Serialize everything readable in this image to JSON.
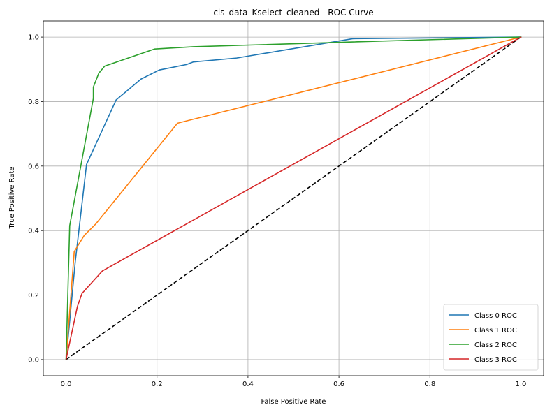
{
  "chart_data": {
    "type": "line",
    "title": "cls_data_Kselect_cleaned - ROC Curve",
    "xlabel": "False Positive Rate",
    "ylabel": "True Positive Rate",
    "xlim": [
      -0.05,
      1.05
    ],
    "ylim": [
      -0.05,
      1.05
    ],
    "x_ticks": [
      0.0,
      0.2,
      0.4,
      0.6,
      0.8,
      1.0
    ],
    "y_ticks": [
      0.0,
      0.2,
      0.4,
      0.6,
      0.8,
      1.0
    ],
    "x_tick_labels": [
      "0.0",
      "0.2",
      "0.4",
      "0.6",
      "0.8",
      "1.0"
    ],
    "y_tick_labels": [
      "0.0",
      "0.2",
      "0.4",
      "0.6",
      "0.8",
      "1.0"
    ],
    "grid": true,
    "legend_position": "lower-right",
    "series": [
      {
        "name": "Class 0 ROC",
        "color": "#1f77b4",
        "x": [
          0.0,
          0.02,
          0.045,
          0.11,
          0.165,
          0.205,
          0.265,
          0.28,
          0.375,
          0.63,
          1.0
        ],
        "y": [
          0.0,
          0.3,
          0.605,
          0.805,
          0.87,
          0.898,
          0.915,
          0.923,
          0.935,
          0.995,
          1.0
        ]
      },
      {
        "name": "Class 1 ROC",
        "color": "#ff7f0e",
        "x": [
          0.0,
          0.018,
          0.04,
          0.065,
          0.245,
          1.0
        ],
        "y": [
          0.0,
          0.335,
          0.385,
          0.42,
          0.733,
          1.0
        ]
      },
      {
        "name": "Class 2 ROC",
        "color": "#2ca02c",
        "x": [
          0.0,
          0.008,
          0.06,
          0.06,
          0.072,
          0.085,
          0.195,
          0.28,
          0.63,
          1.0
        ],
        "y": [
          0.0,
          0.415,
          0.81,
          0.845,
          0.888,
          0.91,
          0.963,
          0.97,
          0.985,
          1.0
        ]
      },
      {
        "name": "Class 3 ROC",
        "color": "#d62728",
        "x": [
          0.0,
          0.025,
          0.035,
          0.08,
          1.0
        ],
        "y": [
          0.0,
          0.165,
          0.205,
          0.275,
          1.0
        ]
      }
    ],
    "reference_line": {
      "x": [
        0.0,
        1.0
      ],
      "y": [
        0.0,
        1.0
      ],
      "color": "#000000",
      "style": "dashed"
    }
  }
}
